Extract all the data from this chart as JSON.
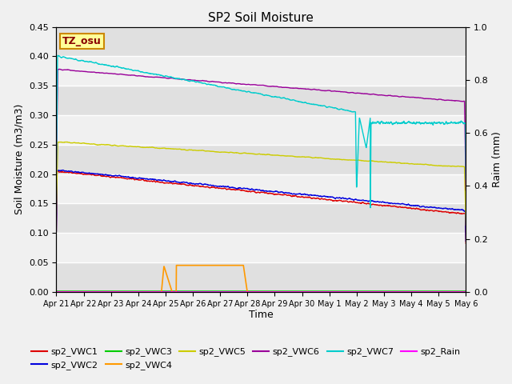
{
  "title": "SP2 Soil Moisture",
  "xlabel": "Time",
  "ylabel_left": "Soil Moisture (m3/m3)",
  "ylabel_right": "Raim (mm)",
  "ylim_left": [
    0.0,
    0.45
  ],
  "ylim_right": [
    0.0,
    1.0
  ],
  "bg_color": "#f0f0f0",
  "tz_label": "TZ_osu",
  "band_light": "#f0f0f0",
  "band_dark": "#e0e0e0",
  "colors": {
    "vwc1": "#dd0000",
    "vwc2": "#0000dd",
    "vwc3": "#00cc00",
    "vwc4": "#ff9900",
    "vwc5": "#cccc00",
    "vwc6": "#990099",
    "vwc7": "#00cccc",
    "rain": "#ff00ff"
  },
  "tick_labels": [
    "Apr 21",
    "Apr 22",
    "Apr 23",
    "Apr 24",
    "Apr 25",
    "Apr 26",
    "Apr 27",
    "Apr 28",
    "Apr 29",
    "Apr 30",
    "May 1",
    "May 2",
    "May 3",
    "May 4",
    "May 5",
    "May 6"
  ],
  "tick_positions": [
    0,
    1,
    2,
    3,
    4,
    5,
    6,
    7,
    8,
    9,
    10,
    11,
    12,
    13,
    14,
    15
  ],
  "yticks_left": [
    0.0,
    0.05,
    0.1,
    0.15,
    0.2,
    0.25,
    0.3,
    0.35,
    0.4,
    0.45
  ],
  "yticks_right": [
    0.0,
    0.2,
    0.4,
    0.6,
    0.8,
    1.0
  ]
}
